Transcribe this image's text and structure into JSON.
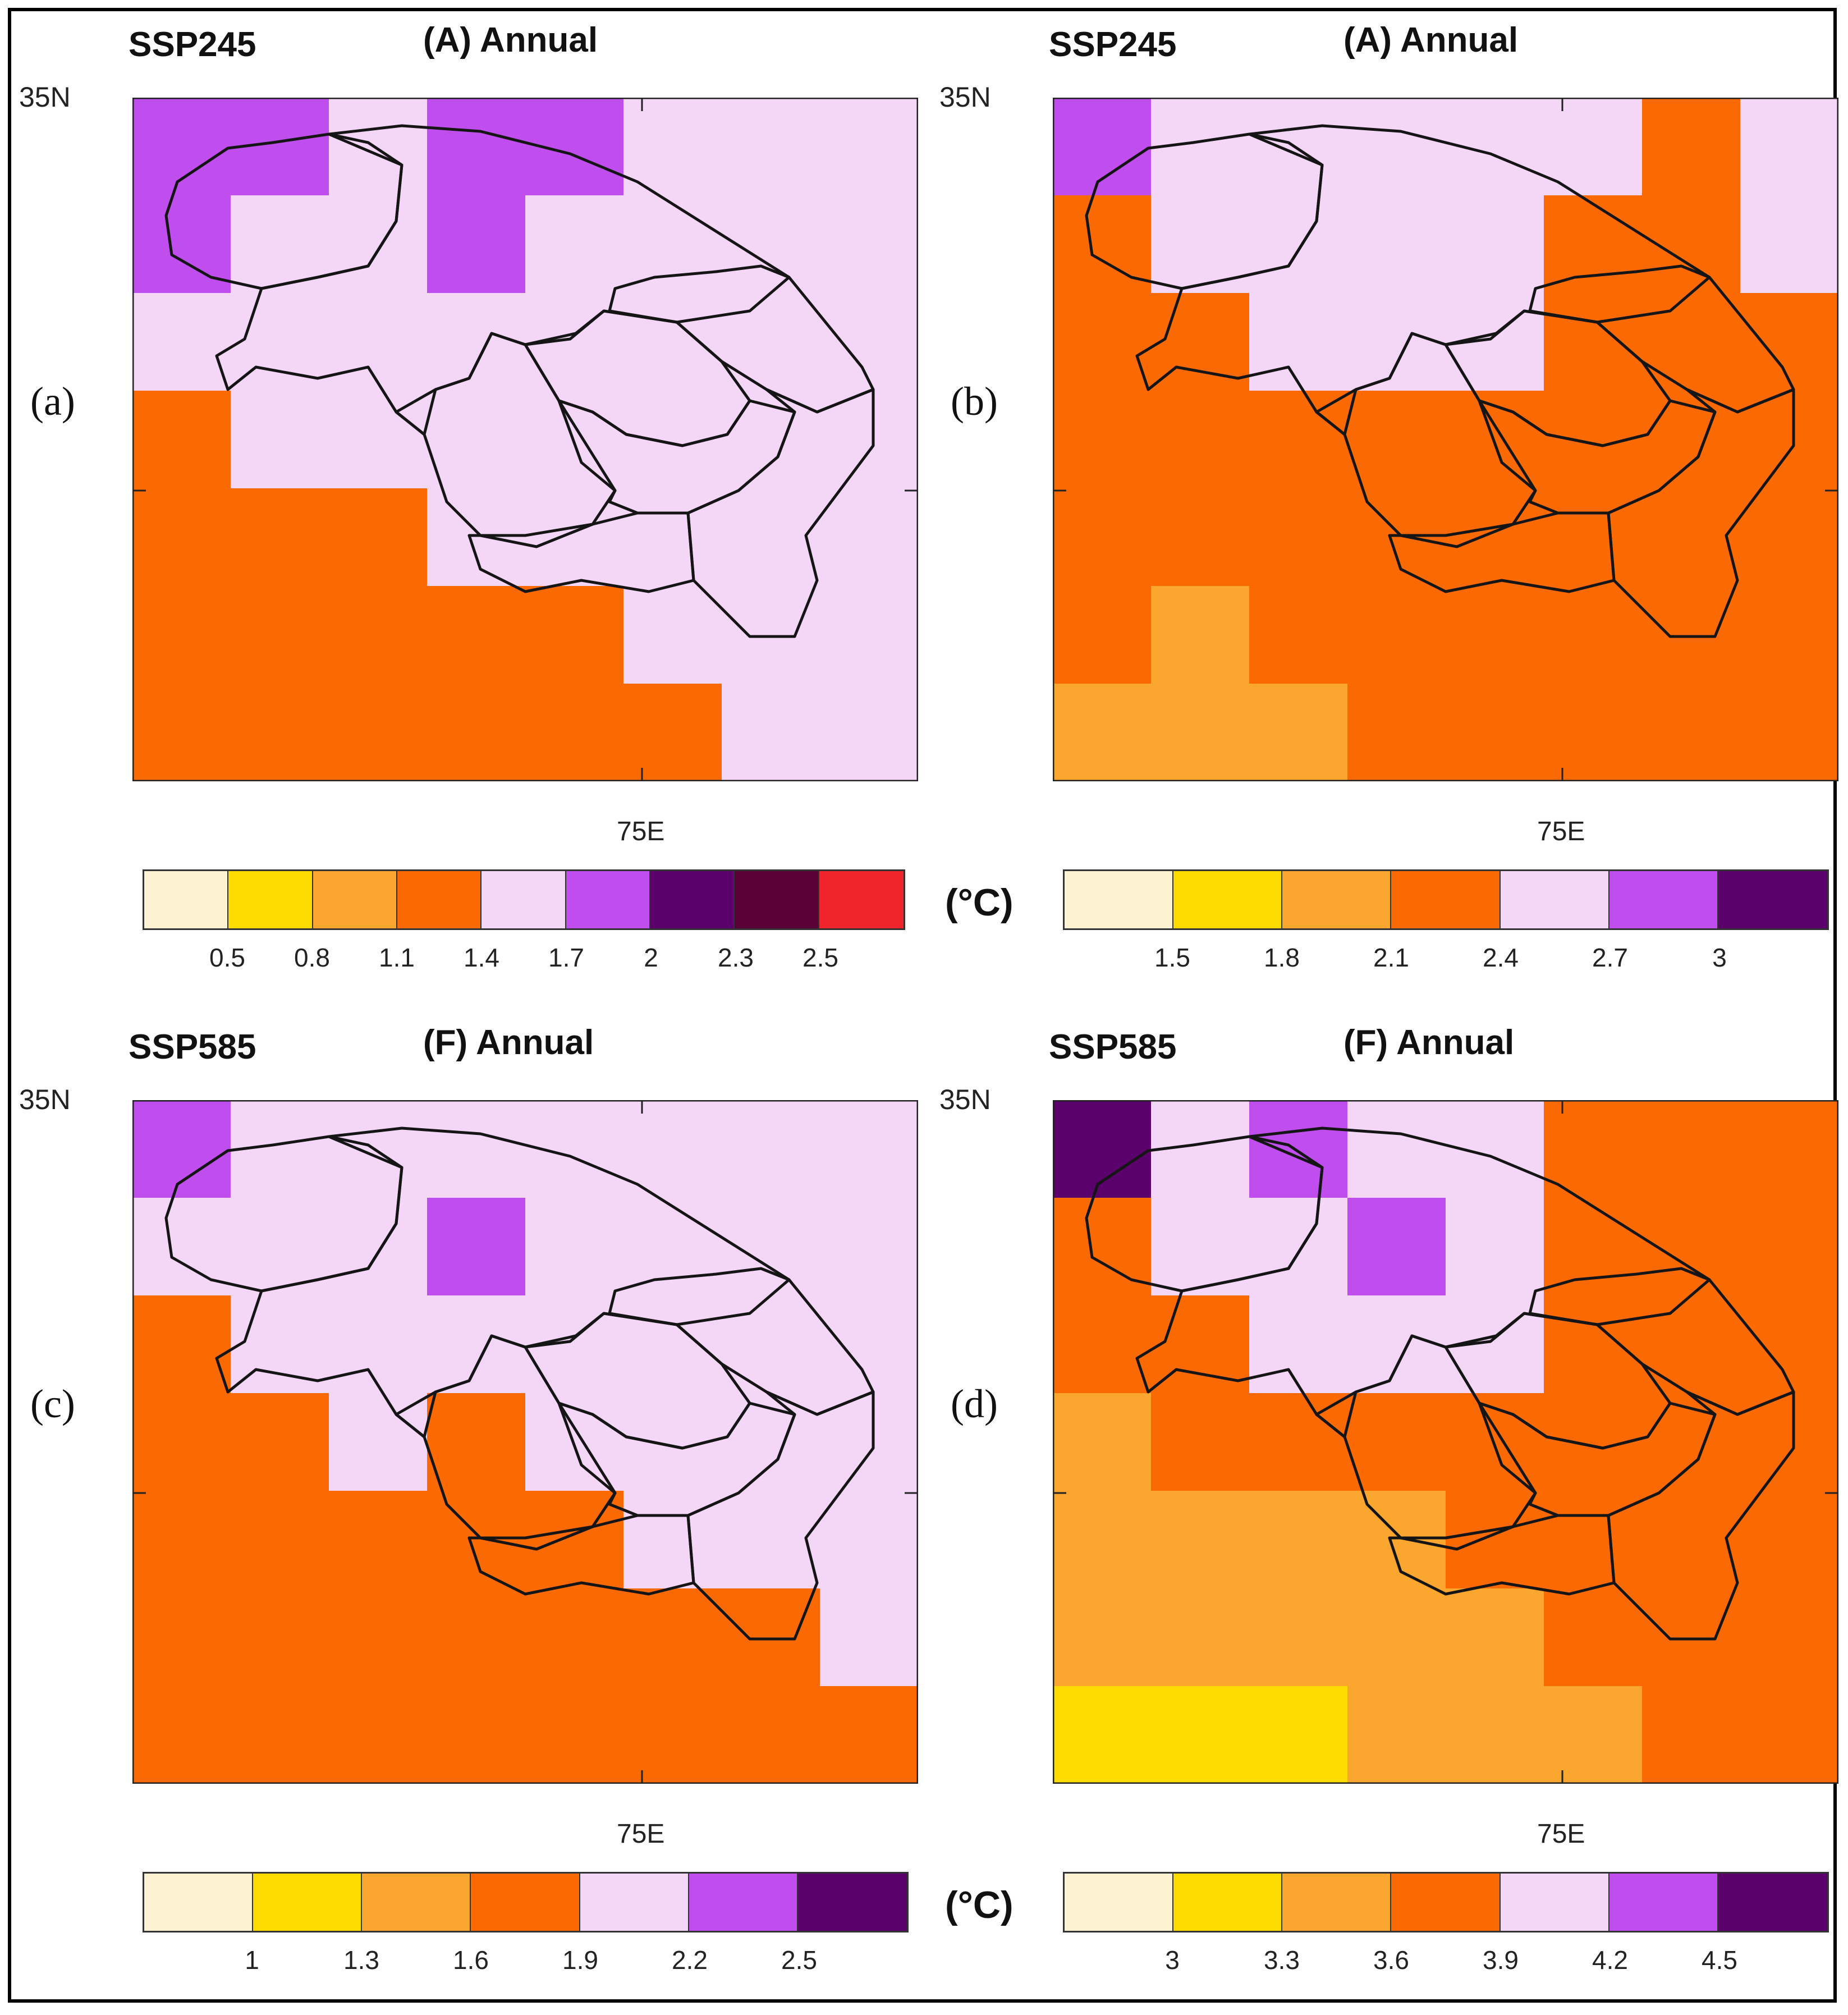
{
  "panels": [
    {
      "id": "a",
      "label": "(a)",
      "scenario": "SSP245",
      "title": "(A) Annual",
      "lat_label": "35N",
      "lon_label": "75E",
      "unit": "(°C)",
      "colorbar": {
        "colors": [
          "#fdf3d2",
          "#fddb00",
          "#fba62e",
          "#fb6a02",
          "#f4d6f7",
          "#c04eef",
          "#5a016b",
          "#5b0138",
          "#f0252c"
        ],
        "labels": [
          "0.5",
          "0.8",
          "1.1",
          "1.4",
          "1.7",
          "2",
          "2.3",
          "2.5"
        ]
      },
      "grid": [
        [
          "P",
          "P",
          "L",
          "P",
          "P",
          "L",
          "L",
          "L"
        ],
        [
          "P",
          "L",
          "L",
          "P",
          "L",
          "L",
          "L",
          "L"
        ],
        [
          "L",
          "L",
          "L",
          "L",
          "L",
          "L",
          "L",
          "L"
        ],
        [
          "O",
          "L",
          "L",
          "L",
          "L",
          "L",
          "L",
          "L"
        ],
        [
          "O",
          "O",
          "O",
          "L",
          "L",
          "L",
          "L",
          "L"
        ],
        [
          "O",
          "O",
          "O",
          "O",
          "O",
          "L",
          "L",
          "L"
        ],
        [
          "O",
          "O",
          "O",
          "O",
          "O",
          "O",
          "L",
          "L"
        ]
      ]
    },
    {
      "id": "b",
      "label": "(b)",
      "scenario": "SSP245",
      "title": "(A) Annual",
      "lat_label": "35N",
      "lon_label": "75E",
      "unit": "",
      "colorbar": {
        "colors": [
          "#fdf3d2",
          "#fddb00",
          "#fba62e",
          "#fb6a02",
          "#f4d6f7",
          "#c04eef",
          "#5a016b"
        ],
        "labels": [
          "1.5",
          "1.8",
          "2.1",
          "2.4",
          "2.7",
          "3"
        ]
      },
      "grid": [
        [
          "P",
          "L",
          "L",
          "L",
          "L",
          "L",
          "O",
          "L"
        ],
        [
          "O",
          "L",
          "L",
          "L",
          "L",
          "O",
          "O",
          "L"
        ],
        [
          "O",
          "O",
          "L",
          "L",
          "L",
          "O",
          "O",
          "O"
        ],
        [
          "O",
          "O",
          "O",
          "O",
          "O",
          "O",
          "O",
          "O"
        ],
        [
          "O",
          "O",
          "O",
          "O",
          "O",
          "O",
          "O",
          "O"
        ],
        [
          "O",
          "A",
          "O",
          "O",
          "O",
          "O",
          "O",
          "O"
        ],
        [
          "A",
          "A",
          "A",
          "O",
          "O",
          "O",
          "O",
          "O"
        ]
      ]
    },
    {
      "id": "c",
      "label": "(c)",
      "scenario": "SSP585",
      "title": "(F) Annual",
      "lat_label": "35N",
      "lon_label": "75E",
      "unit": "(°C)",
      "colorbar": {
        "colors": [
          "#fdf3d2",
          "#fddb00",
          "#fba62e",
          "#fb6a02",
          "#f4d6f7",
          "#c04eef",
          "#5a016b"
        ],
        "labels": [
          "1",
          "1.3",
          "1.6",
          "1.9",
          "2.2",
          "2.5"
        ]
      },
      "grid": [
        [
          "P",
          "L",
          "L",
          "L",
          "L",
          "L",
          "L",
          "L"
        ],
        [
          "L",
          "L",
          "L",
          "P",
          "L",
          "L",
          "L",
          "L"
        ],
        [
          "O",
          "L",
          "L",
          "L",
          "L",
          "L",
          "L",
          "L"
        ],
        [
          "O",
          "O",
          "L",
          "O",
          "L",
          "L",
          "L",
          "L"
        ],
        [
          "O",
          "O",
          "O",
          "O",
          "O",
          "L",
          "L",
          "L"
        ],
        [
          "O",
          "O",
          "O",
          "O",
          "O",
          "O",
          "O",
          "L"
        ],
        [
          "O",
          "O",
          "O",
          "O",
          "O",
          "O",
          "O",
          "O"
        ]
      ]
    },
    {
      "id": "d",
      "label": "(d)",
      "scenario": "SSP585",
      "title": "(F) Annual",
      "lat_label": "35N",
      "lon_label": "75E",
      "unit": "",
      "colorbar": {
        "colors": [
          "#fdf3d2",
          "#fddb00",
          "#fba62e",
          "#fb6a02",
          "#f4d6f7",
          "#c04eef",
          "#5a016b"
        ],
        "labels": [
          "3",
          "3.3",
          "3.6",
          "3.9",
          "4.2",
          "4.5"
        ]
      },
      "grid": [
        [
          "D",
          "L",
          "P",
          "L",
          "L",
          "O",
          "O",
          "O"
        ],
        [
          "O",
          "L",
          "L",
          "P",
          "L",
          "O",
          "O",
          "O"
        ],
        [
          "O",
          "O",
          "L",
          "L",
          "L",
          "O",
          "O",
          "O"
        ],
        [
          "A",
          "O",
          "O",
          "O",
          "O",
          "O",
          "O",
          "O"
        ],
        [
          "A",
          "A",
          "A",
          "A",
          "O",
          "O",
          "O",
          "O"
        ],
        [
          "A",
          "A",
          "A",
          "A",
          "A",
          "O",
          "O",
          "O"
        ],
        [
          "Y",
          "Y",
          "Y",
          "A",
          "A",
          "A",
          "O",
          "O"
        ]
      ]
    }
  ]
}
